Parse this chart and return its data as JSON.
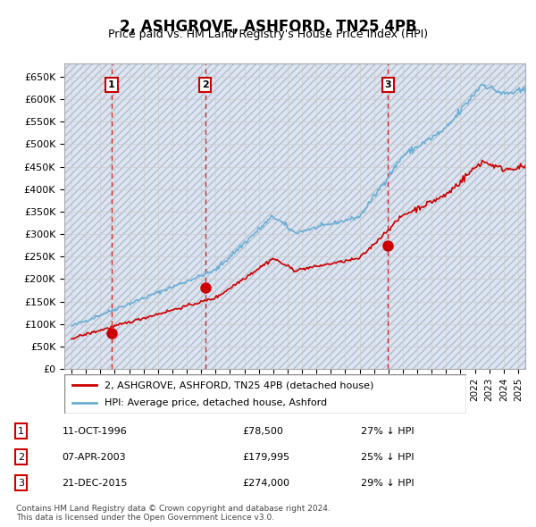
{
  "title": "2, ASHGROVE, ASHFORD, TN25 4PB",
  "subtitle": "Price paid vs. HM Land Registry's House Price Index (HPI)",
  "hpi_color": "#6baed6",
  "price_color": "#cc0000",
  "sale_marker_color": "#cc0000",
  "vline_color": "#cc0000",
  "background_color": "#ffffff",
  "hatch_color": "#d0d8e8",
  "grid_color": "#cccccc",
  "sales": [
    {
      "label": "1",
      "date_num": 1996.78,
      "price": 78500,
      "date_str": "11-OCT-1996",
      "pct": "27% ↓ HPI"
    },
    {
      "label": "2",
      "date_num": 2003.27,
      "price": 179995,
      "date_str": "07-APR-2003",
      "pct": "25% ↓ HPI"
    },
    {
      "label": "3",
      "date_num": 2015.97,
      "price": 274000,
      "date_str": "21-DEC-2015",
      "pct": "29% ↓ HPI"
    }
  ],
  "legend_entries": [
    "2, ASHGROVE, ASHFORD, TN25 4PB (detached house)",
    "HPI: Average price, detached house, Ashford"
  ],
  "footer": "Contains HM Land Registry data © Crown copyright and database right 2024.\nThis data is licensed under the Open Government Licence v3.0.",
  "ylim": [
    0,
    680000
  ],
  "yticks": [
    0,
    50000,
    100000,
    150000,
    200000,
    250000,
    300000,
    350000,
    400000,
    450000,
    500000,
    550000,
    600000,
    650000
  ],
  "xlim_left": 1993.5,
  "xlim_right": 2025.5
}
